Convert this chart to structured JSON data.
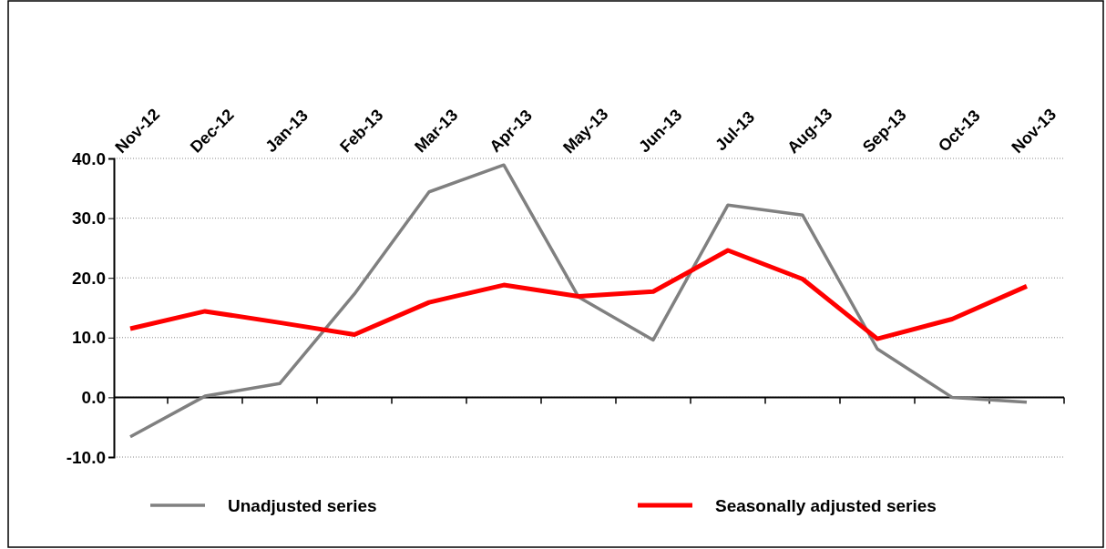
{
  "chart_data": {
    "type": "line",
    "categories": [
      "Nov-12",
      "Dec-12",
      "Jan-13",
      "Feb-13",
      "Mar-13",
      "Apr-13",
      "May-13",
      "Jun-13",
      "Jul-13",
      "Aug-13",
      "Sep-13",
      "Oct-13",
      "Nov-13"
    ],
    "series": [
      {
        "name": "Unadjusted series",
        "color": "#808080",
        "values": [
          -6.6,
          0.2,
          2.3,
          17.3,
          34.4,
          38.9,
          16.8,
          9.6,
          32.2,
          30.5,
          8.1,
          0.0,
          -0.8
        ]
      },
      {
        "name": "Seasonally adjusted series",
        "color": "#ff0000",
        "values": [
          11.5,
          14.4,
          12.5,
          10.5,
          15.9,
          18.8,
          16.9,
          17.7,
          24.6,
          19.8,
          9.8,
          13.1,
          18.6
        ]
      }
    ],
    "ylim": [
      -10,
      40
    ],
    "yticks": [
      {
        "value": -10,
        "label": "-10.0"
      },
      {
        "value": 0,
        "label": "0.0"
      },
      {
        "value": 10,
        "label": "10.0"
      },
      {
        "value": 20,
        "label": "20.0"
      },
      {
        "value": 30,
        "label": "30.0"
      },
      {
        "value": 40,
        "label": "40.0"
      }
    ],
    "grid": "y",
    "legend": "bottom",
    "marker": "none",
    "line_style": "solid"
  }
}
